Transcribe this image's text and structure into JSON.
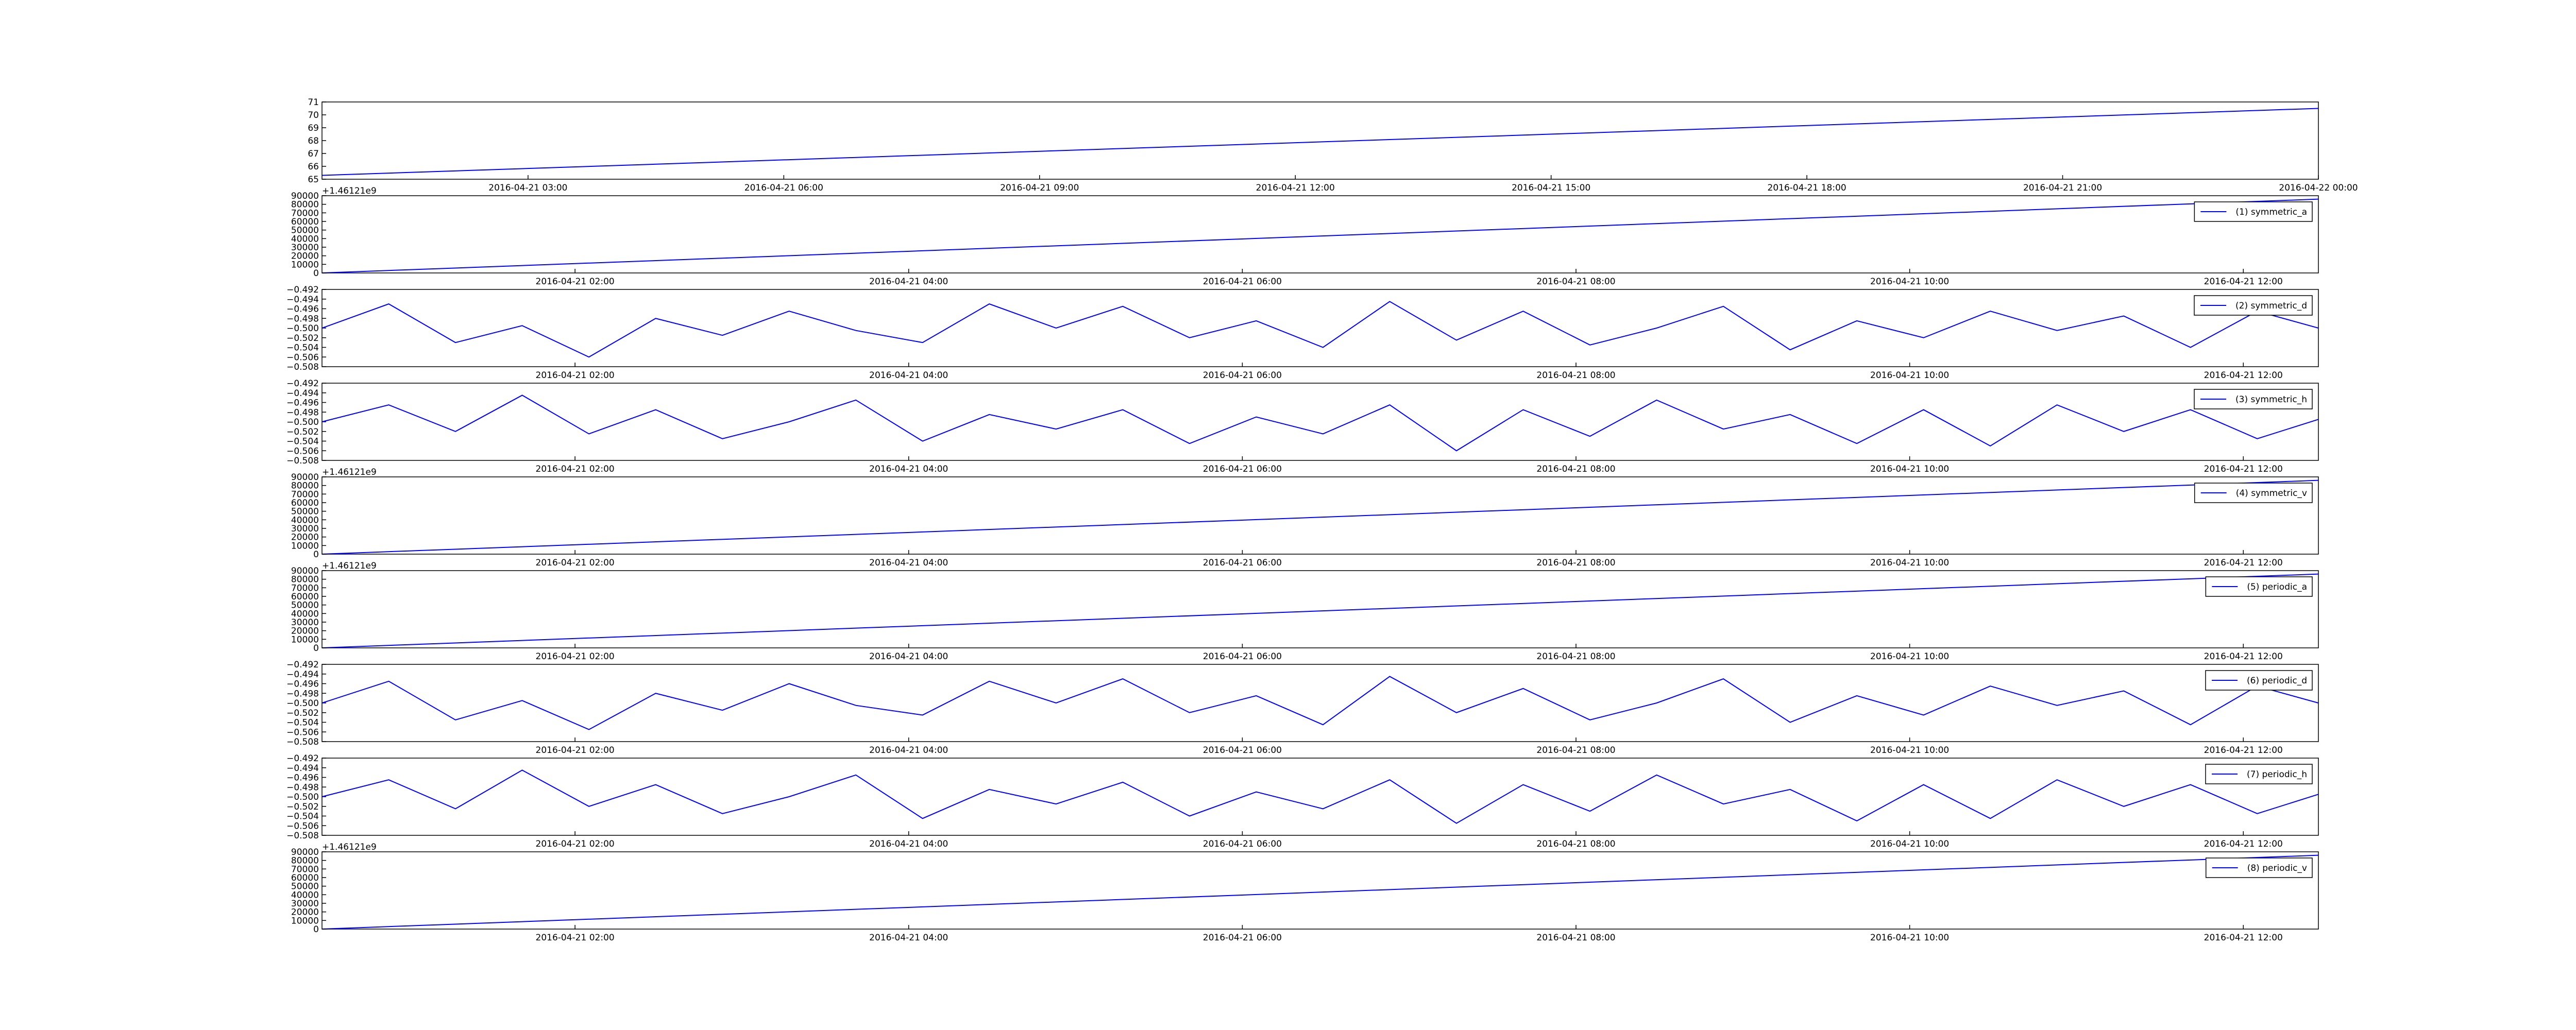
{
  "chart_data": [
    {
      "type": "line",
      "x": [
        "2016-04-21 00:35",
        "2016-04-22 00:00"
      ],
      "series": [
        {
          "color": "#0000ff",
          "values": [
            65.3,
            70.5
          ]
        }
      ],
      "xlim": [
        "2016-04-21 00:35",
        "2016-04-22 00:00"
      ],
      "xticks": [
        "2016-04-21 03:00",
        "2016-04-21 06:00",
        "2016-04-21 09:00",
        "2016-04-21 12:00",
        "2016-04-21 15:00",
        "2016-04-21 18:00",
        "2016-04-21 21:00",
        "2016-04-22 00:00"
      ],
      "ylim": [
        65,
        71
      ],
      "yticks": [
        65,
        66,
        67,
        68,
        69,
        70,
        71
      ]
    },
    {
      "type": "line",
      "offset_text": "+1.46121e9",
      "x": [
        "2016-04-21 00:29",
        "2016-04-21 12:27"
      ],
      "series": [
        {
          "name": "(1) symmetric_a",
          "color": "#0000ff",
          "values": [
            0,
            86000
          ]
        }
      ],
      "xlim": [
        "2016-04-21 00:29",
        "2016-04-21 12:27"
      ],
      "xticks": [
        "2016-04-21 02:00",
        "2016-04-21 04:00",
        "2016-04-21 06:00",
        "2016-04-21 08:00",
        "2016-04-21 10:00",
        "2016-04-21 12:00"
      ],
      "ylim": [
        0,
        90000
      ],
      "yticks": [
        0,
        10000,
        20000,
        30000,
        40000,
        50000,
        60000,
        70000,
        80000,
        90000
      ]
    },
    {
      "type": "line",
      "x": [
        "2016-04-21 00:29",
        "2016-04-21 00:53",
        "2016-04-21 01:17",
        "2016-04-21 01:41",
        "2016-04-21 02:05",
        "2016-04-21 02:29",
        "2016-04-21 02:53",
        "2016-04-21 03:17",
        "2016-04-21 03:41",
        "2016-04-21 04:05",
        "2016-04-21 04:29",
        "2016-04-21 04:53",
        "2016-04-21 05:17",
        "2016-04-21 05:41",
        "2016-04-21 06:05",
        "2016-04-21 06:29",
        "2016-04-21 06:53",
        "2016-04-21 07:17",
        "2016-04-21 07:41",
        "2016-04-21 08:05",
        "2016-04-21 08:29",
        "2016-04-21 08:53",
        "2016-04-21 09:17",
        "2016-04-21 09:41",
        "2016-04-21 10:05",
        "2016-04-21 10:29",
        "2016-04-21 10:53",
        "2016-04-21 11:17",
        "2016-04-21 11:41",
        "2016-04-21 12:05",
        "2016-04-21 12:27"
      ],
      "series": [
        {
          "name": "(2) symmetric_d",
          "color": "#0000ff",
          "values": [
            -0.5,
            -0.495,
            -0.503,
            -0.4995,
            -0.506,
            -0.498,
            -0.5015,
            -0.4965,
            -0.5005,
            -0.503,
            -0.495,
            -0.5,
            -0.4955,
            -0.502,
            -0.4985,
            -0.504,
            -0.4945,
            -0.5025,
            -0.4965,
            -0.5035,
            -0.5,
            -0.4955,
            -0.5045,
            -0.4985,
            -0.502,
            -0.4965,
            -0.5005,
            -0.4975,
            -0.504,
            -0.4965,
            -0.5
          ]
        }
      ],
      "xlim": [
        "2016-04-21 00:29",
        "2016-04-21 12:27"
      ],
      "xticks": [
        "2016-04-21 02:00",
        "2016-04-21 04:00",
        "2016-04-21 06:00",
        "2016-04-21 08:00",
        "2016-04-21 10:00",
        "2016-04-21 12:00"
      ],
      "ylim": [
        -0.508,
        -0.492
      ],
      "yticks": [
        {
          "value": -0.508,
          "label": "−0.508"
        },
        {
          "value": -0.506,
          "label": "−0.506"
        },
        {
          "value": -0.504,
          "label": "−0.504"
        },
        {
          "value": -0.502,
          "label": "−0.502"
        },
        {
          "value": -0.5,
          "label": "−0.500"
        },
        {
          "value": -0.498,
          "label": "−0.498"
        },
        {
          "value": -0.496,
          "label": "−0.496"
        },
        {
          "value": -0.494,
          "label": "−0.494"
        },
        {
          "value": -0.492,
          "label": "−0.492"
        }
      ]
    },
    {
      "type": "line",
      "x": [
        "2016-04-21 00:29",
        "2016-04-21 00:53",
        "2016-04-21 01:17",
        "2016-04-21 01:41",
        "2016-04-21 02:05",
        "2016-04-21 02:29",
        "2016-04-21 02:53",
        "2016-04-21 03:17",
        "2016-04-21 03:41",
        "2016-04-21 04:05",
        "2016-04-21 04:29",
        "2016-04-21 04:53",
        "2016-04-21 05:17",
        "2016-04-21 05:41",
        "2016-04-21 06:05",
        "2016-04-21 06:29",
        "2016-04-21 06:53",
        "2016-04-21 07:17",
        "2016-04-21 07:41",
        "2016-04-21 08:05",
        "2016-04-21 08:29",
        "2016-04-21 08:53",
        "2016-04-21 09:17",
        "2016-04-21 09:41",
        "2016-04-21 10:05",
        "2016-04-21 10:29",
        "2016-04-21 10:53",
        "2016-04-21 11:17",
        "2016-04-21 11:41",
        "2016-04-21 12:05",
        "2016-04-21 12:27"
      ],
      "series": [
        {
          "name": "(3) symmetric_h",
          "color": "#0000ff",
          "values": [
            -0.5,
            -0.4965,
            -0.502,
            -0.4945,
            -0.5025,
            -0.4975,
            -0.5035,
            -0.5,
            -0.4955,
            -0.504,
            -0.4985,
            -0.5015,
            -0.4975,
            -0.5045,
            -0.499,
            -0.5025,
            -0.4965,
            -0.506,
            -0.4975,
            -0.503,
            -0.4955,
            -0.5015,
            -0.4985,
            -0.5045,
            -0.4975,
            -0.505,
            -0.4965,
            -0.502,
            -0.4975,
            -0.5035,
            -0.4995
          ]
        }
      ],
      "xlim": [
        "2016-04-21 00:29",
        "2016-04-21 12:27"
      ],
      "xticks": [
        "2016-04-21 02:00",
        "2016-04-21 04:00",
        "2016-04-21 06:00",
        "2016-04-21 08:00",
        "2016-04-21 10:00",
        "2016-04-21 12:00"
      ],
      "ylim": [
        -0.508,
        -0.492
      ],
      "yticks": [
        {
          "value": -0.508,
          "label": "−0.508"
        },
        {
          "value": -0.506,
          "label": "−0.506"
        },
        {
          "value": -0.504,
          "label": "−0.504"
        },
        {
          "value": -0.502,
          "label": "−0.502"
        },
        {
          "value": -0.5,
          "label": "−0.500"
        },
        {
          "value": -0.498,
          "label": "−0.498"
        },
        {
          "value": -0.496,
          "label": "−0.496"
        },
        {
          "value": -0.494,
          "label": "−0.494"
        },
        {
          "value": -0.492,
          "label": "−0.492"
        }
      ]
    },
    {
      "type": "line",
      "offset_text": "+1.46121e9",
      "x": [
        "2016-04-21 00:29",
        "2016-04-21 12:27"
      ],
      "series": [
        {
          "name": "(4) symmetric_v",
          "color": "#0000ff",
          "values": [
            0,
            86000
          ]
        }
      ],
      "xlim": [
        "2016-04-21 00:29",
        "2016-04-21 12:27"
      ],
      "xticks": [
        "2016-04-21 02:00",
        "2016-04-21 04:00",
        "2016-04-21 06:00",
        "2016-04-21 08:00",
        "2016-04-21 10:00",
        "2016-04-21 12:00"
      ],
      "ylim": [
        0,
        90000
      ],
      "yticks": [
        0,
        10000,
        20000,
        30000,
        40000,
        50000,
        60000,
        70000,
        80000,
        90000
      ]
    },
    {
      "type": "line",
      "offset_text": "+1.46121e9",
      "x": [
        "2016-04-21 00:29",
        "2016-04-21 12:27"
      ],
      "series": [
        {
          "name": "(5) periodic_a",
          "color": "#0000ff",
          "values": [
            0,
            86000
          ]
        }
      ],
      "xlim": [
        "2016-04-21 00:29",
        "2016-04-21 12:27"
      ],
      "xticks": [
        "2016-04-21 02:00",
        "2016-04-21 04:00",
        "2016-04-21 06:00",
        "2016-04-21 08:00",
        "2016-04-21 10:00",
        "2016-04-21 12:00"
      ],
      "ylim": [
        0,
        90000
      ],
      "yticks": [
        0,
        10000,
        20000,
        30000,
        40000,
        50000,
        60000,
        70000,
        80000,
        90000
      ]
    },
    {
      "type": "line",
      "x": [
        "2016-04-21 00:29",
        "2016-04-21 00:53",
        "2016-04-21 01:17",
        "2016-04-21 01:41",
        "2016-04-21 02:05",
        "2016-04-21 02:29",
        "2016-04-21 02:53",
        "2016-04-21 03:17",
        "2016-04-21 03:41",
        "2016-04-21 04:05",
        "2016-04-21 04:29",
        "2016-04-21 04:53",
        "2016-04-21 05:17",
        "2016-04-21 05:41",
        "2016-04-21 06:05",
        "2016-04-21 06:29",
        "2016-04-21 06:53",
        "2016-04-21 07:17",
        "2016-04-21 07:41",
        "2016-04-21 08:05",
        "2016-04-21 08:29",
        "2016-04-21 08:53",
        "2016-04-21 09:17",
        "2016-04-21 09:41",
        "2016-04-21 10:05",
        "2016-04-21 10:29",
        "2016-04-21 10:53",
        "2016-04-21 11:17",
        "2016-04-21 11:41",
        "2016-04-21 12:05",
        "2016-04-21 12:27"
      ],
      "series": [
        {
          "name": "(6) periodic_d",
          "color": "#0000ff",
          "values": [
            -0.5,
            -0.4955,
            -0.5035,
            -0.4995,
            -0.5055,
            -0.498,
            -0.5015,
            -0.496,
            -0.5005,
            -0.5025,
            -0.4955,
            -0.5,
            -0.495,
            -0.502,
            -0.4985,
            -0.5045,
            -0.4945,
            -0.502,
            -0.497,
            -0.5035,
            -0.5,
            -0.495,
            -0.504,
            -0.4985,
            -0.5025,
            -0.4965,
            -0.5005,
            -0.4975,
            -0.5045,
            -0.4965,
            -0.5
          ]
        }
      ],
      "xlim": [
        "2016-04-21 00:29",
        "2016-04-21 12:27"
      ],
      "xticks": [
        "2016-04-21 02:00",
        "2016-04-21 04:00",
        "2016-04-21 06:00",
        "2016-04-21 08:00",
        "2016-04-21 10:00",
        "2016-04-21 12:00"
      ],
      "ylim": [
        -0.508,
        -0.492
      ],
      "yticks": [
        {
          "value": -0.508,
          "label": "−0.508"
        },
        {
          "value": -0.506,
          "label": "−0.506"
        },
        {
          "value": -0.504,
          "label": "−0.504"
        },
        {
          "value": -0.502,
          "label": "−0.502"
        },
        {
          "value": -0.5,
          "label": "−0.500"
        },
        {
          "value": -0.498,
          "label": "−0.498"
        },
        {
          "value": -0.496,
          "label": "−0.496"
        },
        {
          "value": -0.494,
          "label": "−0.494"
        },
        {
          "value": -0.492,
          "label": "−0.492"
        }
      ]
    },
    {
      "type": "line",
      "x": [
        "2016-04-21 00:29",
        "2016-04-21 00:53",
        "2016-04-21 01:17",
        "2016-04-21 01:41",
        "2016-04-21 02:05",
        "2016-04-21 02:29",
        "2016-04-21 02:53",
        "2016-04-21 03:17",
        "2016-04-21 03:41",
        "2016-04-21 04:05",
        "2016-04-21 04:29",
        "2016-04-21 04:53",
        "2016-04-21 05:17",
        "2016-04-21 05:41",
        "2016-04-21 06:05",
        "2016-04-21 06:29",
        "2016-04-21 06:53",
        "2016-04-21 07:17",
        "2016-04-21 07:41",
        "2016-04-21 08:05",
        "2016-04-21 08:29",
        "2016-04-21 08:53",
        "2016-04-21 09:17",
        "2016-04-21 09:41",
        "2016-04-21 10:05",
        "2016-04-21 10:29",
        "2016-04-21 10:53",
        "2016-04-21 11:17",
        "2016-04-21 11:41",
        "2016-04-21 12:05",
        "2016-04-21 12:27"
      ],
      "series": [
        {
          "name": "(7) periodic_h",
          "color": "#0000ff",
          "values": [
            -0.5,
            -0.4965,
            -0.5025,
            -0.4945,
            -0.502,
            -0.4975,
            -0.5035,
            -0.5,
            -0.4955,
            -0.5045,
            -0.4985,
            -0.5015,
            -0.497,
            -0.504,
            -0.499,
            -0.5025,
            -0.4965,
            -0.5055,
            -0.4975,
            -0.503,
            -0.4955,
            -0.5015,
            -0.4985,
            -0.505,
            -0.4975,
            -0.5045,
            -0.4965,
            -0.502,
            -0.4975,
            -0.5035,
            -0.4995
          ]
        }
      ],
      "xlim": [
        "2016-04-21 00:29",
        "2016-04-21 12:27"
      ],
      "xticks": [
        "2016-04-21 02:00",
        "2016-04-21 04:00",
        "2016-04-21 06:00",
        "2016-04-21 08:00",
        "2016-04-21 10:00",
        "2016-04-21 12:00"
      ],
      "ylim": [
        -0.508,
        -0.492
      ],
      "yticks": [
        {
          "value": -0.508,
          "label": "−0.508"
        },
        {
          "value": -0.506,
          "label": "−0.506"
        },
        {
          "value": -0.504,
          "label": "−0.504"
        },
        {
          "value": -0.502,
          "label": "−0.502"
        },
        {
          "value": -0.5,
          "label": "−0.500"
        },
        {
          "value": -0.498,
          "label": "−0.498"
        },
        {
          "value": -0.496,
          "label": "−0.496"
        },
        {
          "value": -0.494,
          "label": "−0.494"
        },
        {
          "value": -0.492,
          "label": "−0.492"
        }
      ]
    },
    {
      "type": "line",
      "offset_text": "+1.46121e9",
      "x": [
        "2016-04-21 00:29",
        "2016-04-21 12:27"
      ],
      "series": [
        {
          "name": "(8) periodic_v",
          "color": "#0000ff",
          "values": [
            0,
            86000
          ]
        }
      ],
      "xlim": [
        "2016-04-21 00:29",
        "2016-04-21 12:27"
      ],
      "xticks": [
        "2016-04-21 02:00",
        "2016-04-21 04:00",
        "2016-04-21 06:00",
        "2016-04-21 08:00",
        "2016-04-21 10:00",
        "2016-04-21 12:00"
      ],
      "ylim": [
        0,
        90000
      ],
      "yticks": [
        0,
        10000,
        20000,
        30000,
        40000,
        50000,
        60000,
        70000,
        80000,
        90000
      ]
    }
  ]
}
